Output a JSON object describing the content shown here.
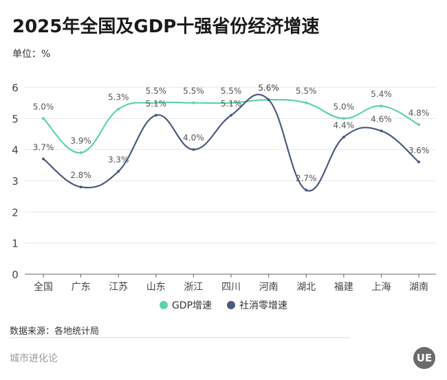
{
  "header": {
    "title": "2025年全国及GDP十强省份经济增速",
    "unit": "单位：%"
  },
  "colors": {
    "gdp": "#5dd3a5",
    "retail": "#4a5a7e",
    "grid": "#e5e5e5",
    "axis": "#666666",
    "label": "#555555"
  },
  "chart_data": {
    "type": "line",
    "title": "2025年全国及GDP十强省份经济增速",
    "xlabel": "",
    "ylabel": "单位：%",
    "ylim": [
      0,
      6
    ],
    "yticks": [
      0,
      1,
      2,
      3,
      4,
      5,
      6
    ],
    "grid": true,
    "legend_position": "bottom",
    "smooth": true,
    "categories": [
      "全国",
      "广东",
      "江苏",
      "山东",
      "浙江",
      "四川",
      "河南",
      "湖北",
      "福建",
      "上海",
      "湖南"
    ],
    "series": [
      {
        "name": "GDP增速",
        "color": "#5dd3a5",
        "values": [
          5.0,
          3.9,
          5.3,
          5.5,
          5.5,
          5.5,
          5.6,
          5.5,
          5.0,
          5.4,
          4.8
        ]
      },
      {
        "name": "社消零增速",
        "color": "#4a5a7e",
        "values": [
          3.7,
          2.8,
          3.3,
          5.1,
          4.0,
          5.1,
          5.6,
          2.7,
          4.4,
          4.6,
          3.6
        ]
      }
    ],
    "value_suffix": "%"
  },
  "legend": {
    "items": [
      {
        "label": "GDP增速"
      },
      {
        "label": "社消零增速"
      }
    ]
  },
  "footer": {
    "source": "数据来源：各地统计局",
    "brand": "城市进化论",
    "logo_text": "UE"
  }
}
